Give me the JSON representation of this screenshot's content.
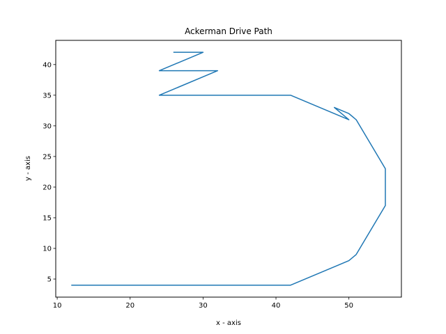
{
  "chart_data": {
    "type": "line",
    "title": "Ackerman Drive Path",
    "xlabel": "x - axis",
    "ylabel": "y - axis",
    "xlim": [
      9.8,
      57.2
    ],
    "ylim": [
      2.05,
      43.95
    ],
    "xticks": [
      10,
      20,
      30,
      40,
      50
    ],
    "yticks": [
      5,
      10,
      15,
      20,
      25,
      30,
      35,
      40
    ],
    "grid": false,
    "line_color": "#1f77b4",
    "series": [
      {
        "x": [
          12,
          42,
          50,
          51,
          55,
          55,
          51,
          50,
          48,
          50,
          42,
          24,
          32,
          24,
          30,
          26
        ],
        "y": [
          4,
          4,
          8,
          9,
          17,
          23,
          31,
          32,
          33,
          31,
          35,
          35,
          39,
          39,
          42,
          42
        ]
      }
    ]
  }
}
